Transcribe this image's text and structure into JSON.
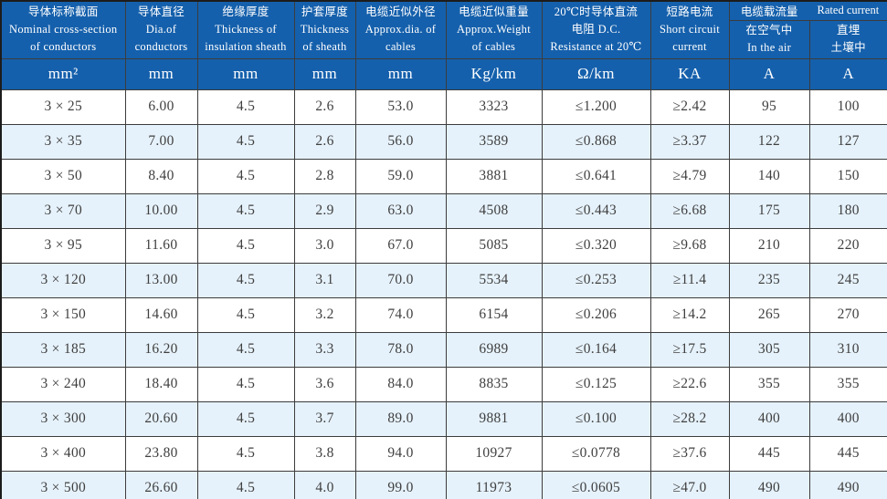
{
  "table": {
    "header": {
      "cols": [
        {
          "text": "导体标称截面\nNominal cross-section\nof conductors"
        },
        {
          "text": "导体直径\nDia.of\nconductors"
        },
        {
          "text": "绝缘厚度\nThickness of\ninsulation sheath"
        },
        {
          "text": "护套厚度\nThickness\nof sheath"
        },
        {
          "text": "电缆近似外径\nApprox.dia. of\ncables"
        },
        {
          "text": "电缆近似重量\nApprox.Weight\nof cables"
        },
        {
          "text": "20℃时导体直流\n电阻 D.C.\nResistance at 20℃"
        },
        {
          "text": "短路电流\nShort circuit\ncurrent"
        }
      ],
      "group": {
        "left": "电缆载流量",
        "right": "Rated current"
      },
      "sub": [
        {
          "text": "在空气中\nIn the air"
        },
        {
          "text": "直埋\n土壤中"
        }
      ]
    },
    "units": [
      "mm²",
      "mm",
      "mm",
      "mm",
      "mm",
      "Kg/km",
      "Ω/km",
      "KA",
      "A",
      "A"
    ],
    "rows": [
      [
        "3 × 25",
        "6.00",
        "4.5",
        "2.6",
        "53.0",
        "3323",
        "≤1.200",
        "≥2.42",
        "95",
        "100"
      ],
      [
        "3 × 35",
        "7.00",
        "4.5",
        "2.6",
        "56.0",
        "3589",
        "≤0.868",
        "≥3.37",
        "122",
        "127"
      ],
      [
        "3 × 50",
        "8.40",
        "4.5",
        "2.8",
        "59.0",
        "3881",
        "≤0.641",
        "≥4.79",
        "140",
        "150"
      ],
      [
        "3 × 70",
        "10.00",
        "4.5",
        "2.9",
        "63.0",
        "4508",
        "≤0.443",
        "≥6.68",
        "175",
        "180"
      ],
      [
        "3 × 95",
        "11.60",
        "4.5",
        "3.0",
        "67.0",
        "5085",
        "≤0.320",
        "≥9.68",
        "210",
        "220"
      ],
      [
        "3 × 120",
        "13.00",
        "4.5",
        "3.1",
        "70.0",
        "5534",
        "≤0.253",
        "≥11.4",
        "235",
        "245"
      ],
      [
        "3 × 150",
        "14.60",
        "4.5",
        "3.2",
        "74.0",
        "6154",
        "≤0.206",
        "≥14.2",
        "265",
        "270"
      ],
      [
        "3 × 185",
        "16.20",
        "4.5",
        "3.3",
        "78.0",
        "6989",
        "≤0.164",
        "≥17.5",
        "305",
        "310"
      ],
      [
        "3 × 240",
        "18.40",
        "4.5",
        "3.6",
        "84.0",
        "8835",
        "≤0.125",
        "≥22.6",
        "355",
        "355"
      ],
      [
        "3 × 300",
        "20.60",
        "4.5",
        "3.7",
        "89.0",
        "9881",
        "≤0.100",
        "≥28.2",
        "400",
        "400"
      ],
      [
        "3 × 400",
        "23.80",
        "4.5",
        "3.8",
        "94.0",
        "10927",
        "≤0.0778",
        "≥37.6",
        "445",
        "445"
      ],
      [
        "3 × 500",
        "26.60",
        "4.5",
        "4.0",
        "99.0",
        "11973",
        "≤0.0605",
        "≥47.0",
        "490",
        "490"
      ]
    ],
    "colors": {
      "header_bg": "#1560ac",
      "alt_row_bg": "#e6f2fb",
      "grid": "#3c3c3c",
      "data_text": "#3f3f3f",
      "header_text": "#ffffff"
    }
  }
}
